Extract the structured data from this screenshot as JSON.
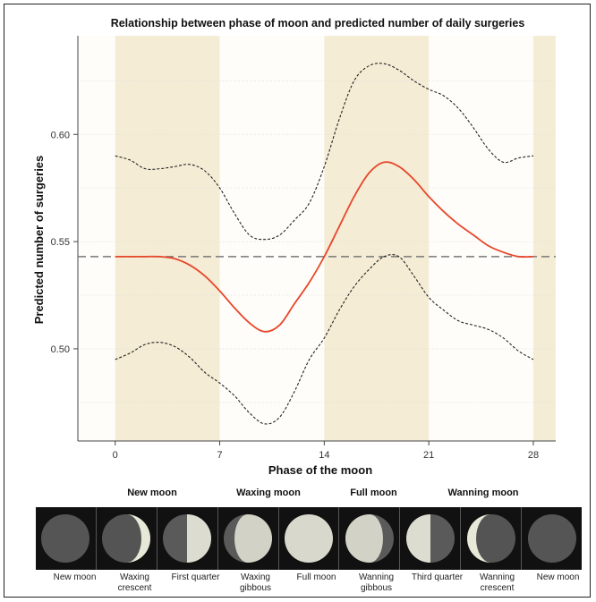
{
  "chart_data": {
    "type": "line",
    "title": "Relationship between phase of moon and predicted number of daily surgeries",
    "xlabel": "Phase of the moon",
    "ylabel": "Predicted number of surgeries",
    "xlim": [
      -2.5,
      29.5
    ],
    "ylim": [
      0.457,
      0.646
    ],
    "xticks": [
      0,
      7,
      14,
      21,
      28
    ],
    "yticks": [
      0.5,
      0.55,
      0.6
    ],
    "ytick_labels": [
      "0.50",
      "0.55",
      "0.60"
    ],
    "reference_line": 0.543,
    "shaded_phases": [
      [
        0,
        7
      ],
      [
        14,
        21
      ],
      [
        28,
        29.5
      ]
    ],
    "grid": true,
    "colors": {
      "prediction": "#e8462a",
      "band": "#222222",
      "reference": "#777777",
      "shade": "#f5ecd5"
    },
    "series": [
      {
        "style": "solid",
        "x": [
          0,
          1,
          2,
          3,
          4,
          5,
          6,
          7,
          8,
          9,
          10,
          11,
          12,
          13,
          14,
          15,
          16,
          17,
          18,
          19,
          20,
          21,
          22,
          23,
          24,
          25,
          26,
          27,
          28
        ],
        "values": [
          0.543,
          0.543,
          0.543,
          0.543,
          0.542,
          0.539,
          0.534,
          0.527,
          0.519,
          0.512,
          0.508,
          0.511,
          0.521,
          0.531,
          0.543,
          0.557,
          0.571,
          0.582,
          0.587,
          0.585,
          0.579,
          0.571,
          0.564,
          0.558,
          0.553,
          0.548,
          0.545,
          0.543,
          0.543
        ]
      },
      {
        "style": "dashed",
        "x": [
          0,
          1,
          2,
          3,
          4,
          5,
          6,
          7,
          8,
          9,
          10,
          11,
          12,
          13,
          14,
          15,
          16,
          17,
          18,
          19,
          20,
          21,
          22,
          23,
          24,
          25,
          26,
          27,
          28
        ],
        "values": [
          0.59,
          0.588,
          0.584,
          0.584,
          0.585,
          0.586,
          0.583,
          0.575,
          0.563,
          0.553,
          0.551,
          0.553,
          0.56,
          0.568,
          0.585,
          0.607,
          0.625,
          0.632,
          0.633,
          0.63,
          0.625,
          0.621,
          0.618,
          0.612,
          0.603,
          0.593,
          0.587,
          0.589,
          0.59
        ]
      },
      {
        "style": "dashed",
        "x": [
          0,
          1,
          2,
          3,
          4,
          5,
          6,
          7,
          8,
          9,
          10,
          11,
          12,
          13,
          14,
          15,
          16,
          17,
          18,
          19,
          20,
          21,
          22,
          23,
          24,
          25,
          26,
          27,
          28
        ],
        "values": [
          0.495,
          0.498,
          0.502,
          0.503,
          0.501,
          0.496,
          0.489,
          0.484,
          0.478,
          0.47,
          0.465,
          0.468,
          0.48,
          0.495,
          0.505,
          0.518,
          0.529,
          0.537,
          0.543,
          0.543,
          0.534,
          0.524,
          0.518,
          0.513,
          0.511,
          0.509,
          0.505,
          0.499,
          0.495
        ]
      }
    ]
  },
  "phase_groups": [
    "New moon",
    "Waxing moon",
    "Full moon",
    "Wanning moon"
  ],
  "moon_phases": [
    {
      "label": "New moon",
      "icon": "new-moon-icon"
    },
    {
      "label": "Waxing crescent",
      "icon": "waxing-crescent-icon"
    },
    {
      "label": "First quarter",
      "icon": "first-quarter-icon"
    },
    {
      "label": "Waxing gibbous",
      "icon": "waxing-gibbous-icon"
    },
    {
      "label": "Full moon",
      "icon": "full-moon-icon"
    },
    {
      "label": "Wanning gibbous",
      "icon": "wanning-gibbous-icon"
    },
    {
      "label": "Third quarter",
      "icon": "third-quarter-icon"
    },
    {
      "label": "Wanning crescent",
      "icon": "wanning-crescent-icon"
    },
    {
      "label": "New moon",
      "icon": "new-moon-icon"
    }
  ]
}
